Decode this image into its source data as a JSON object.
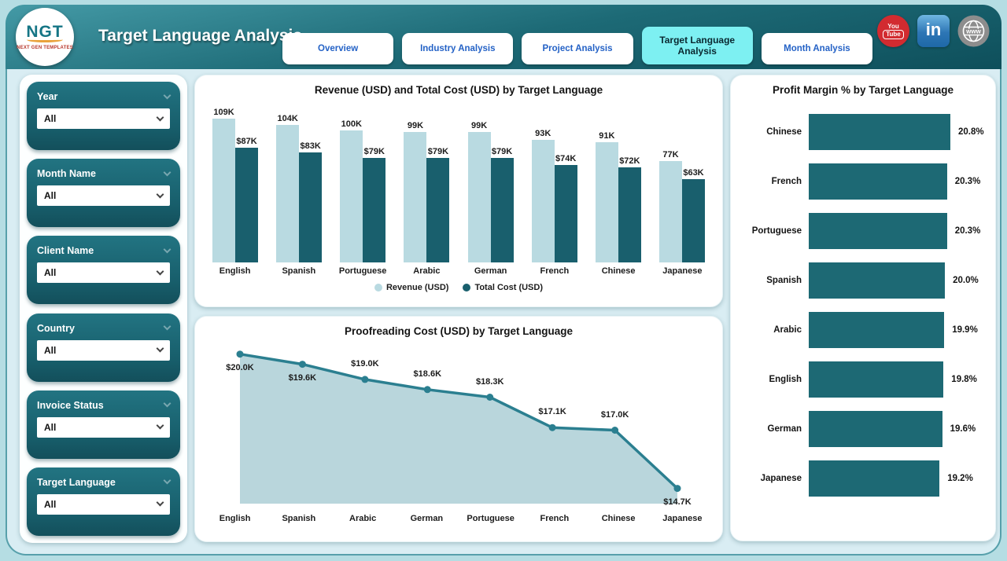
{
  "header": {
    "logo": {
      "text": "NGT",
      "subtext": "NEXT GEN TEMPLATES"
    },
    "title": "Target Language Analysis",
    "tabs": [
      {
        "label": "Overview",
        "active": false
      },
      {
        "label": "Industry Analysis",
        "active": false
      },
      {
        "label": "Project Analysis",
        "active": false
      },
      {
        "label": "Target Language Analysis",
        "active": true
      },
      {
        "label": "Month Analysis",
        "active": false
      }
    ],
    "social": {
      "youtube_top": "You",
      "youtube_bottom": "Tube",
      "linkedin": "in",
      "website": "www"
    }
  },
  "filters": [
    {
      "label": "Year",
      "value": "All"
    },
    {
      "label": "Month Name",
      "value": "All"
    },
    {
      "label": "Client Name",
      "value": "All"
    },
    {
      "label": "Country",
      "value": "All"
    },
    {
      "label": "Invoice Status",
      "value": "All"
    },
    {
      "label": "Target Language",
      "value": "All"
    }
  ],
  "colors": {
    "header_teal": "#1d6a76",
    "filter_teal": "#18606d",
    "active_tab": "#7df0f2",
    "tab_text": "#2462c6",
    "revenue_bar": "#b9dae1",
    "cost_bar": "#195f6d",
    "line": "#2b7f90",
    "area_fill": "#b5d4da",
    "profit_bar": "#1d6974"
  },
  "chart_data": [
    {
      "type": "bar",
      "title": "Revenue (USD) and Total Cost (USD) by Target Language",
      "categories": [
        "English",
        "Spanish",
        "Portuguese",
        "Arabic",
        "German",
        "French",
        "Chinese",
        "Japanese"
      ],
      "series": [
        {
          "name": "Revenue (USD)",
          "values": [
            109,
            104,
            100,
            99,
            99,
            93,
            91,
            77
          ],
          "labels": [
            "109K",
            "104K",
            "100K",
            "99K",
            "99K",
            "93K",
            "91K",
            "77K"
          ],
          "color": "#b9dae1"
        },
        {
          "name": "Total Cost (USD)",
          "values": [
            87,
            83,
            79,
            79,
            79,
            74,
            72,
            63
          ],
          "labels": [
            "$87K",
            "$83K",
            "$79K",
            "$79K",
            "$79K",
            "$74K",
            "$72K",
            "$63K"
          ],
          "color": "#195f6d"
        }
      ],
      "ylim": [
        0,
        110
      ],
      "legend_position": "bottom"
    },
    {
      "type": "area",
      "title": "Proofreading Cost (USD) by Target Language",
      "categories": [
        "English",
        "Spanish",
        "Arabic",
        "German",
        "Portuguese",
        "French",
        "Chinese",
        "Japanese"
      ],
      "values": [
        20.0,
        19.6,
        19.0,
        18.6,
        18.3,
        17.1,
        17.0,
        14.7
      ],
      "labels": [
        "$20.0K",
        "$19.6K",
        "$19.0K",
        "$18.6K",
        "$18.3K",
        "$17.1K",
        "$17.0K",
        "$14.7K"
      ],
      "ylim": [
        14.1,
        20.3
      ],
      "line_color": "#2b7f90",
      "fill_color": "#b5d4da"
    },
    {
      "type": "bar-horizontal",
      "title": "Profit Margin % by Target Language",
      "categories": [
        "Chinese",
        "French",
        "Portuguese",
        "Spanish",
        "Arabic",
        "English",
        "German",
        "Japanese"
      ],
      "values": [
        20.8,
        20.3,
        20.3,
        20.0,
        19.9,
        19.8,
        19.6,
        19.2
      ],
      "labels": [
        "20.8%",
        "20.3%",
        "20.3%",
        "20.0%",
        "19.9%",
        "19.8%",
        "19.6%",
        "19.2%"
      ],
      "xlim": [
        0,
        20.8
      ],
      "bar_color": "#1d6974"
    }
  ]
}
